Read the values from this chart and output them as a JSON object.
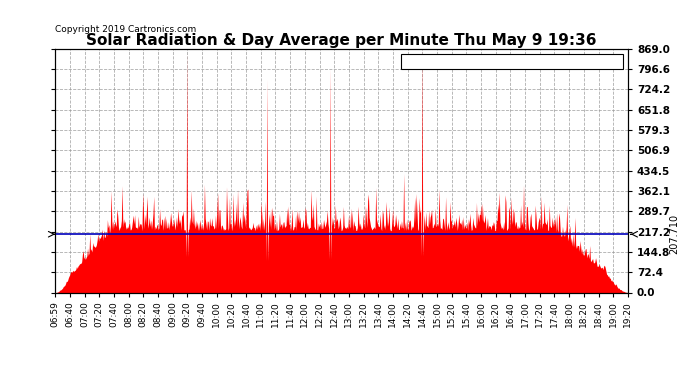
{
  "title": "Solar Radiation & Day Average per Minute Thu May 9 19:36",
  "copyright": "Copyright 2019 Cartronics.com",
  "ylim": [
    0,
    869.0
  ],
  "yticks": [
    0.0,
    72.4,
    144.8,
    217.2,
    289.7,
    362.1,
    434.5,
    506.9,
    579.3,
    651.8,
    724.2,
    796.6,
    869.0
  ],
  "ytick_labels": [
    "0.0",
    "72.4",
    "144.8",
    "217.2",
    "289.7",
    "362.1",
    "434.5",
    "506.9",
    "579.3",
    "651.8",
    "724.2",
    "796.6",
    "869.0"
  ],
  "median_value": 207.71,
  "median_label": "207.710",
  "radiation_color": "#FF0000",
  "median_color": "#0000BB",
  "bg_color": "#FFFFFF",
  "plot_bg_color": "#FFFFFF",
  "grid_color": "#999999",
  "title_fontsize": 11,
  "legend_median_bg": "#0000BB",
  "legend_radiation_bg": "#FF0000",
  "legend_text_color": "#FFFFFF",
  "time_labels": [
    "06:59",
    "06:40",
    "07:00",
    "07:20",
    "07:40",
    "08:00",
    "08:20",
    "08:40",
    "09:00",
    "09:20",
    "09:40",
    "10:00",
    "10:20",
    "10:40",
    "11:00",
    "11:20",
    "11:40",
    "12:00",
    "12:20",
    "12:40",
    "13:00",
    "13:20",
    "13:40",
    "14:00",
    "14:20",
    "14:40",
    "15:00",
    "15:20",
    "15:40",
    "16:00",
    "16:20",
    "16:40",
    "17:00",
    "17:20",
    "17:40",
    "18:00",
    "18:20",
    "18:40",
    "19:00",
    "19:20"
  ]
}
